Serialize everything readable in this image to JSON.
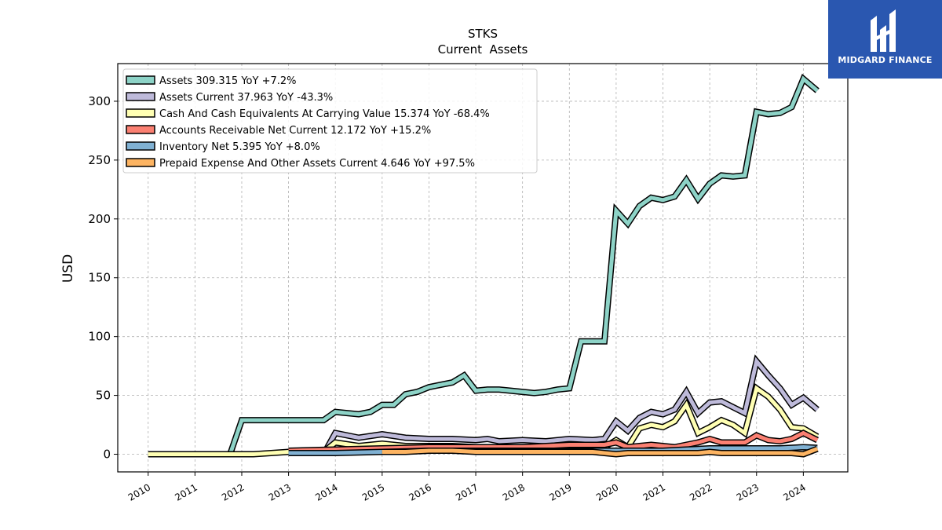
{
  "chart_data": {
    "type": "line",
    "title": "STKS",
    "subtitle": "Current  Assets",
    "ylabel": "USD",
    "xlabel": "",
    "xlim": [
      2009.35,
      2024.95
    ],
    "ylim": [
      -15,
      332
    ],
    "x_ticks": [
      "2010",
      "2011",
      "2012",
      "2013",
      "2014",
      "2015",
      "2016",
      "2017",
      "2018",
      "2019",
      "2020",
      "2021",
      "2022",
      "2023",
      "2024"
    ],
    "y_ticks": [
      0,
      50,
      100,
      150,
      200,
      250,
      300
    ],
    "grid": true,
    "legend_position": "top-left",
    "series": [
      {
        "name": "Assets  309.315 YoY +7.2%",
        "color": "#8dd3c7",
        "points": [
          [
            2011.75,
            0
          ],
          [
            2012.0,
            29
          ],
          [
            2013.75,
            29
          ],
          [
            2014.0,
            36
          ],
          [
            2014.5,
            34
          ],
          [
            2014.75,
            36
          ],
          [
            2015.0,
            42
          ],
          [
            2015.25,
            42
          ],
          [
            2015.5,
            51
          ],
          [
            2015.75,
            53
          ],
          [
            2016.0,
            57
          ],
          [
            2016.25,
            59
          ],
          [
            2016.5,
            61
          ],
          [
            2016.75,
            67
          ],
          [
            2017.0,
            54
          ],
          [
            2017.25,
            55
          ],
          [
            2017.5,
            55
          ],
          [
            2017.75,
            54
          ],
          [
            2018.0,
            53
          ],
          [
            2018.25,
            52
          ],
          [
            2018.5,
            53
          ],
          [
            2018.75,
            55
          ],
          [
            2019.0,
            56
          ],
          [
            2019.25,
            96
          ],
          [
            2019.75,
            96
          ],
          [
            2020.0,
            207
          ],
          [
            2020.25,
            196
          ],
          [
            2020.5,
            211
          ],
          [
            2020.75,
            218
          ],
          [
            2021.0,
            216
          ],
          [
            2021.25,
            219
          ],
          [
            2021.5,
            233
          ],
          [
            2021.75,
            217
          ],
          [
            2022.0,
            230
          ],
          [
            2022.25,
            237
          ],
          [
            2022.5,
            236
          ],
          [
            2022.75,
            237
          ],
          [
            2023.0,
            291
          ],
          [
            2023.25,
            289
          ],
          [
            2023.5,
            290
          ],
          [
            2023.75,
            295
          ],
          [
            2024.0,
            319
          ],
          [
            2024.3,
            309
          ]
        ]
      },
      {
        "name": "Assets Current  37.963 YoY -43.3%",
        "color": "#bebada",
        "points": [
          [
            2013.75,
            0
          ],
          [
            2014.0,
            18
          ],
          [
            2014.5,
            14
          ],
          [
            2015.0,
            17
          ],
          [
            2015.5,
            14
          ],
          [
            2016.0,
            13
          ],
          [
            2016.5,
            13
          ],
          [
            2017.0,
            12
          ],
          [
            2017.25,
            13
          ],
          [
            2017.5,
            11
          ],
          [
            2018.0,
            12
          ],
          [
            2018.5,
            11
          ],
          [
            2019.0,
            13
          ],
          [
            2019.5,
            12
          ],
          [
            2019.75,
            13
          ],
          [
            2020.0,
            28
          ],
          [
            2020.25,
            20
          ],
          [
            2020.5,
            31
          ],
          [
            2020.75,
            36
          ],
          [
            2021.0,
            34
          ],
          [
            2021.25,
            38
          ],
          [
            2021.5,
            53
          ],
          [
            2021.75,
            35
          ],
          [
            2022.0,
            44
          ],
          [
            2022.25,
            45
          ],
          [
            2022.5,
            40
          ],
          [
            2022.75,
            35
          ],
          [
            2023.0,
            79
          ],
          [
            2023.25,
            67
          ],
          [
            2023.5,
            56
          ],
          [
            2023.75,
            42
          ],
          [
            2024.0,
            48
          ],
          [
            2024.3,
            38
          ]
        ]
      },
      {
        "name": "Cash And Cash Equivalents At Carrying Value  15.374 YoY -68.4%",
        "color": "#ffffb3",
        "points": [
          [
            2010.0,
            0
          ],
          [
            2012.25,
            0
          ],
          [
            2013.0,
            2
          ],
          [
            2013.75,
            2
          ],
          [
            2014.0,
            10
          ],
          [
            2014.5,
            7
          ],
          [
            2015.0,
            9
          ],
          [
            2015.5,
            7
          ],
          [
            2016.0,
            7
          ],
          [
            2016.5,
            7
          ],
          [
            2017.0,
            6
          ],
          [
            2017.5,
            5
          ],
          [
            2018.0,
            6
          ],
          [
            2018.5,
            5
          ],
          [
            2019.0,
            6
          ],
          [
            2019.5,
            6
          ],
          [
            2019.75,
            6
          ],
          [
            2020.0,
            12
          ],
          [
            2020.25,
            6
          ],
          [
            2020.5,
            22
          ],
          [
            2020.75,
            25
          ],
          [
            2021.0,
            23
          ],
          [
            2021.25,
            28
          ],
          [
            2021.5,
            42
          ],
          [
            2021.75,
            18
          ],
          [
            2022.0,
            23
          ],
          [
            2022.25,
            29
          ],
          [
            2022.5,
            25
          ],
          [
            2022.75,
            18
          ],
          [
            2023.0,
            56
          ],
          [
            2023.25,
            49
          ],
          [
            2023.5,
            38
          ],
          [
            2023.75,
            23
          ],
          [
            2024.0,
            22
          ],
          [
            2024.3,
            15
          ]
        ]
      },
      {
        "name": "Accounts Receivable Net Current  12.172 YoY +15.2%",
        "color": "#fb8072",
        "points": [
          [
            2013.0,
            3
          ],
          [
            2014.0,
            4
          ],
          [
            2015.0,
            5
          ],
          [
            2016.0,
            6
          ],
          [
            2017.0,
            6
          ],
          [
            2018.0,
            6
          ],
          [
            2019.0,
            8
          ],
          [
            2019.5,
            8
          ],
          [
            2019.75,
            8
          ],
          [
            2020.0,
            10
          ],
          [
            2020.25,
            6
          ],
          [
            2020.5,
            7
          ],
          [
            2020.75,
            8
          ],
          [
            2021.0,
            7
          ],
          [
            2021.25,
            6
          ],
          [
            2021.5,
            8
          ],
          [
            2021.75,
            10
          ],
          [
            2022.0,
            13
          ],
          [
            2022.25,
            10
          ],
          [
            2022.5,
            10
          ],
          [
            2022.75,
            10
          ],
          [
            2023.0,
            16
          ],
          [
            2023.25,
            12
          ],
          [
            2023.5,
            11
          ],
          [
            2023.75,
            13
          ],
          [
            2024.0,
            18
          ],
          [
            2024.3,
            12
          ]
        ]
      },
      {
        "name": "Inventory Net  5.395 YoY +8.0%",
        "color": "#80b1d3",
        "points": [
          [
            2013.0,
            1
          ],
          [
            2014.0,
            1
          ],
          [
            2015.0,
            2
          ],
          [
            2016.0,
            3
          ],
          [
            2017.0,
            3
          ],
          [
            2018.0,
            3
          ],
          [
            2019.0,
            3
          ],
          [
            2020.0,
            3
          ],
          [
            2020.5,
            3
          ],
          [
            2021.0,
            3
          ],
          [
            2021.5,
            4
          ],
          [
            2022.0,
            5
          ],
          [
            2022.5,
            5
          ],
          [
            2023.0,
            5
          ],
          [
            2023.5,
            5
          ],
          [
            2024.0,
            6
          ],
          [
            2024.3,
            5.4
          ]
        ]
      },
      {
        "name": "Prepaid Expense And Other Assets Current  4.646 YoY +97.5%",
        "color": "#fdb462",
        "points": [
          [
            2015.0,
            2
          ],
          [
            2015.5,
            2
          ],
          [
            2016.0,
            3
          ],
          [
            2016.5,
            3
          ],
          [
            2017.0,
            2
          ],
          [
            2017.5,
            2
          ],
          [
            2018.0,
            2
          ],
          [
            2018.5,
            2
          ],
          [
            2019.0,
            2
          ],
          [
            2019.5,
            2
          ],
          [
            2019.75,
            1
          ],
          [
            2020.0,
            0
          ],
          [
            2020.25,
            1
          ],
          [
            2020.5,
            1
          ],
          [
            2020.75,
            1
          ],
          [
            2021.0,
            1
          ],
          [
            2021.25,
            1
          ],
          [
            2021.5,
            1
          ],
          [
            2021.75,
            1
          ],
          [
            2022.0,
            2
          ],
          [
            2022.25,
            1
          ],
          [
            2022.5,
            1
          ],
          [
            2022.75,
            1
          ],
          [
            2023.0,
            1
          ],
          [
            2023.25,
            1
          ],
          [
            2023.5,
            1
          ],
          [
            2023.75,
            1
          ],
          [
            2024.0,
            0
          ],
          [
            2024.3,
            4.6
          ]
        ]
      }
    ]
  },
  "brand": {
    "name": "MIDGARD FINANCE",
    "background": "#2a57b0"
  }
}
